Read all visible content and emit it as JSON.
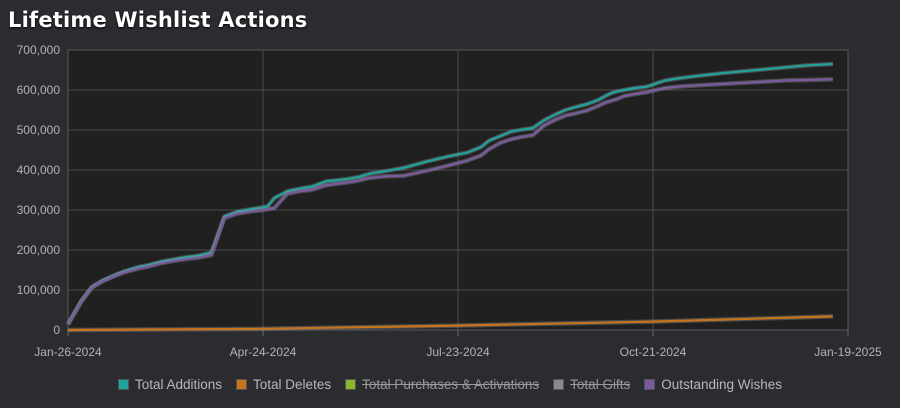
{
  "chart_data": {
    "type": "line",
    "title": "Lifetime Wishlist Actions",
    "xlabel": "",
    "ylabel": "",
    "ylim": [
      0,
      700000
    ],
    "xlim": [
      "2024-01-26",
      "2025-01-19"
    ],
    "grid": true,
    "legend_position": "bottom",
    "x_ticks": [
      "Jan-26-2024",
      "Apr-24-2024",
      "Jul-23-2024",
      "Oct-21-2024",
      "Jan-19-2025"
    ],
    "y_ticks": [
      "0",
      "100,000",
      "200,000",
      "300,000",
      "400,000",
      "500,000",
      "600,000",
      "700,000"
    ],
    "series": [
      {
        "name": "Total Additions",
        "color": "#1fa39a",
        "visible": true,
        "x": [
          "2024-01-26",
          "2024-02-01",
          "2024-02-06",
          "2024-02-11",
          "2024-02-16",
          "2024-02-21",
          "2024-02-27",
          "2024-03-04",
          "2024-03-09",
          "2024-03-14",
          "2024-03-20",
          "2024-03-26",
          "2024-04-01",
          "2024-04-07",
          "2024-04-13",
          "2024-04-20",
          "2024-04-25",
          "2024-04-27",
          "2024-04-30",
          "2024-05-06",
          "2024-05-12",
          "2024-05-17",
          "2024-05-22",
          "2024-05-24",
          "2024-05-28",
          "2024-06-03",
          "2024-06-08",
          "2024-06-11",
          "2024-06-14",
          "2024-06-20",
          "2024-06-29",
          "2024-07-09",
          "2024-07-19",
          "2024-07-28",
          "2024-08-03",
          "2024-08-07",
          "2024-08-12",
          "2024-08-17",
          "2024-08-22",
          "2024-08-27",
          "2024-09-01",
          "2024-09-06",
          "2024-09-11",
          "2024-09-16",
          "2024-09-21",
          "2024-09-26",
          "2024-09-29",
          "2024-10-02",
          "2024-10-05",
          "2024-10-08",
          "2024-10-13",
          "2024-10-18",
          "2024-10-21",
          "2024-10-24",
          "2024-10-27",
          "2024-11-03",
          "2024-11-12",
          "2024-11-22",
          "2024-12-02",
          "2024-12-12",
          "2024-12-22",
          "2025-01-01",
          "2025-01-12"
        ],
        "values": [
          15000,
          72000,
          108000,
          124000,
          136000,
          147000,
          157000,
          164000,
          171000,
          176000,
          182000,
          186000,
          194000,
          284000,
          296000,
          303000,
          307000,
          310000,
          330000,
          347000,
          354000,
          358000,
          368000,
          372000,
          374000,
          378000,
          383000,
          388000,
          392000,
          397000,
          406000,
          421000,
          434000,
          444000,
          457000,
          474000,
          485000,
          496000,
          501000,
          505000,
          524000,
          538000,
          550000,
          558000,
          565000,
          575000,
          584000,
          592000,
          597000,
          600000,
          605000,
          608000,
          613000,
          619000,
          624000,
          630000,
          636000,
          642000,
          647000,
          652000,
          657000,
          662000,
          665000
        ]
      },
      {
        "name": "Total Deletes",
        "color": "#c8741a",
        "visible": true,
        "x": [
          "2024-01-26",
          "2024-04-24",
          "2024-07-23",
          "2024-10-21",
          "2025-01-12"
        ],
        "values": [
          0,
          3000,
          11000,
          21000,
          34000
        ]
      },
      {
        "name": "Total Purchases & Activations",
        "color": "#8ab82a",
        "visible": false
      },
      {
        "name": "Total Gifts",
        "color": "#8a8a8a",
        "visible": false
      },
      {
        "name": "Outstanding Wishes",
        "color": "#7b5a9e",
        "visible": true,
        "x": [
          "2024-01-26",
          "2024-02-01",
          "2024-02-06",
          "2024-02-11",
          "2024-02-16",
          "2024-02-21",
          "2024-02-27",
          "2024-03-04",
          "2024-03-09",
          "2024-03-14",
          "2024-03-20",
          "2024-03-26",
          "2024-04-01",
          "2024-04-07",
          "2024-04-13",
          "2024-04-20",
          "2024-04-25",
          "2024-04-27",
          "2024-04-30",
          "2024-05-06",
          "2024-05-12",
          "2024-05-17",
          "2024-05-22",
          "2024-05-24",
          "2024-05-28",
          "2024-06-03",
          "2024-06-08",
          "2024-06-11",
          "2024-06-14",
          "2024-06-20",
          "2024-06-29",
          "2024-07-09",
          "2024-07-19",
          "2024-07-28",
          "2024-08-03",
          "2024-08-07",
          "2024-08-12",
          "2024-08-17",
          "2024-08-22",
          "2024-08-27",
          "2024-09-01",
          "2024-09-06",
          "2024-09-11",
          "2024-09-16",
          "2024-09-21",
          "2024-09-26",
          "2024-09-29",
          "2024-10-02",
          "2024-10-05",
          "2024-10-08",
          "2024-10-13",
          "2024-10-18",
          "2024-10-21",
          "2024-10-24",
          "2024-10-27",
          "2024-11-03",
          "2024-11-12",
          "2024-11-22",
          "2024-12-02",
          "2024-12-12",
          "2024-12-22",
          "2025-01-01",
          "2025-01-12"
        ],
        "values": [
          14000,
          70000,
          106000,
          122000,
          134000,
          144000,
          153000,
          160000,
          167000,
          172000,
          177000,
          181000,
          187000,
          280000,
          291000,
          297000,
          300000,
          302000,
          305000,
          341000,
          347000,
          350000,
          359000,
          362000,
          365000,
          369000,
          374000,
          378000,
          381000,
          384000,
          386000,
          398000,
          411000,
          424000,
          436000,
          453000,
          468000,
          477000,
          483000,
          487000,
          511000,
          525000,
          536000,
          542000,
          549000,
          560000,
          568000,
          573000,
          578000,
          585000,
          590000,
          594000,
          598000,
          602000,
          605000,
          609000,
          612000,
          615000,
          618000,
          621000,
          624000,
          625000,
          627000
        ]
      }
    ]
  }
}
